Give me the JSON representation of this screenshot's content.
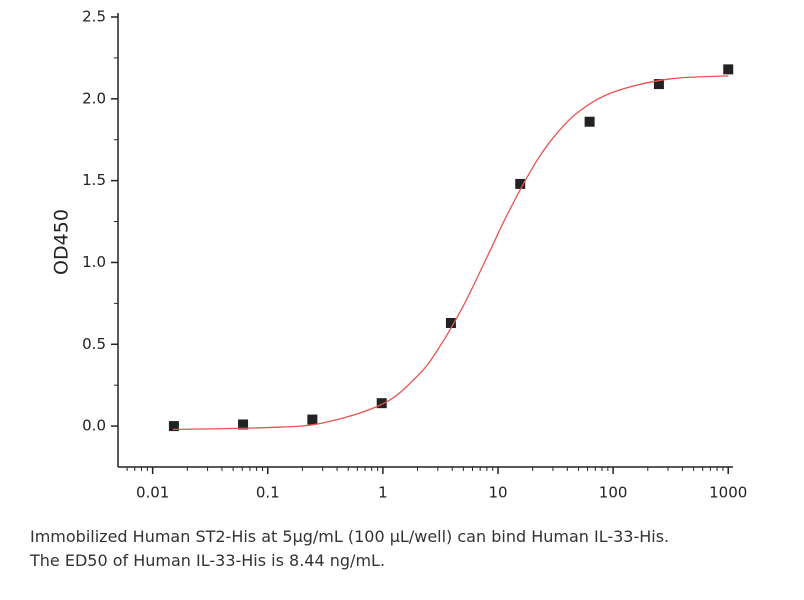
{
  "chart_data": {
    "type": "scatter",
    "y_label": "OD450",
    "x_scale": "log",
    "xlim": [
      0.005,
      1100
    ],
    "xticks": [
      0.01,
      0.1,
      1,
      10,
      100,
      1000
    ],
    "ylim": [
      -0.25,
      2.5
    ],
    "yticks": [
      {
        "value": 0,
        "label": "0.0"
      },
      0.5,
      {
        "value": 1,
        "label": "1.0"
      },
      1.5,
      {
        "value": 2,
        "label": "2.0"
      },
      2.5
    ],
    "grid": false,
    "series": [
      {
        "type": "scatter",
        "color": "#222222",
        "x": [
          0.0153,
          0.061,
          0.244,
          0.977,
          3.9,
          15.6,
          62.5,
          250,
          1000
        ],
        "values": [
          0.0,
          0.01,
          0.04,
          0.14,
          0.63,
          1.48,
          1.86,
          2.09,
          2.18
        ]
      },
      {
        "type": "line",
        "color": "#e8534f",
        "x": [
          0.015,
          0.1,
          0.3,
          1,
          2,
          3,
          5,
          8.44,
          12,
          20,
          30,
          50,
          100,
          300,
          1000
        ],
        "values": [
          -0.02,
          -0.009,
          0.019,
          0.136,
          0.307,
          0.467,
          0.735,
          1.065,
          1.291,
          1.58,
          1.76,
          1.92,
          2.04,
          2.12,
          2.14
        ]
      }
    ],
    "caption": [
      "Immobilized Human ST2-His at 5μg/mL (100 μL/well) can bind Human IL-33-His.",
      "The ED50 of Human IL-33-His is 8.44 ng/mL."
    ]
  }
}
